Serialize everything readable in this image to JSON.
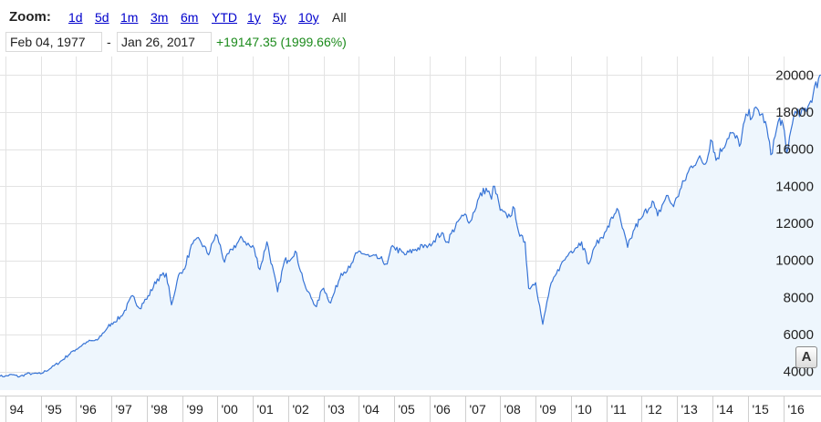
{
  "toolbar": {
    "zoom_label": "Zoom:",
    "ranges": [
      "1d",
      "5d",
      "1m",
      "3m",
      "6m",
      "YTD",
      "1y",
      "5y",
      "10y"
    ],
    "active_range": "All",
    "date_from": "Feb 04, 1977",
    "separator": "-",
    "date_to": "Jan 26, 2017",
    "change_text": "+19147.35 (1999.66%)",
    "change_color": "#1b8a1b"
  },
  "chart_data": {
    "type": "area",
    "x_axis": {
      "labels": [
        "94",
        "'95",
        "'96",
        "'97",
        "'98",
        "'99",
        "'00",
        "'01",
        "'02",
        "'03",
        "'04",
        "'05",
        "'06",
        "'07",
        "'08",
        "'09",
        "'10",
        "'11",
        "'12",
        "'13",
        "'14",
        "'15",
        "'16"
      ],
      "years": [
        1994,
        1995,
        1996,
        1997,
        1998,
        1999,
        2000,
        2001,
        2002,
        2003,
        2004,
        2005,
        2006,
        2007,
        2008,
        2009,
        2010,
        2011,
        2012,
        2013,
        2014,
        2015,
        2016
      ]
    },
    "y_axis": {
      "min": 3000,
      "max": 21000,
      "ticks": [
        4000,
        6000,
        8000,
        10000,
        12000,
        14000,
        16000,
        18000,
        20000
      ],
      "side": "right"
    },
    "grid": true,
    "line_color": "#3774d6",
    "fill_color": "#eef6fd",
    "series": [
      {
        "points": [
          [
            1993.85,
            3750
          ],
          [
            1994.0,
            3760
          ],
          [
            1994.2,
            3830
          ],
          [
            1994.4,
            3720
          ],
          [
            1994.6,
            3870
          ],
          [
            1994.8,
            3900
          ],
          [
            1995.0,
            3880
          ],
          [
            1995.3,
            4200
          ],
          [
            1995.6,
            4600
          ],
          [
            1995.9,
            5100
          ],
          [
            1996.0,
            5200
          ],
          [
            1996.3,
            5600
          ],
          [
            1996.6,
            5700
          ],
          [
            1996.9,
            6400
          ],
          [
            1997.0,
            6600
          ],
          [
            1997.3,
            7000
          ],
          [
            1997.6,
            8100
          ],
          [
            1997.8,
            7400
          ],
          [
            1997.95,
            7900
          ],
          [
            1998.0,
            7900
          ],
          [
            1998.3,
            9000
          ],
          [
            1998.55,
            9300
          ],
          [
            1998.7,
            7600
          ],
          [
            1998.9,
            9200
          ],
          [
            1999.0,
            9300
          ],
          [
            1999.3,
            10900
          ],
          [
            1999.5,
            11100
          ],
          [
            1999.75,
            10300
          ],
          [
            1999.95,
            11400
          ],
          [
            2000.0,
            11300
          ],
          [
            2000.2,
            9900
          ],
          [
            2000.4,
            10600
          ],
          [
            2000.7,
            11200
          ],
          [
            2000.95,
            10700
          ],
          [
            2001.0,
            10800
          ],
          [
            2001.2,
            9500
          ],
          [
            2001.4,
            11000
          ],
          [
            2001.7,
            8300
          ],
          [
            2001.9,
            10000
          ],
          [
            2002.0,
            10000
          ],
          [
            2002.2,
            10500
          ],
          [
            2002.5,
            8500
          ],
          [
            2002.8,
            7500
          ],
          [
            2002.95,
            8400
          ],
          [
            2003.0,
            8500
          ],
          [
            2003.2,
            7700
          ],
          [
            2003.5,
            9300
          ],
          [
            2003.75,
            9600
          ],
          [
            2003.95,
            10400
          ],
          [
            2004.0,
            10500
          ],
          [
            2004.3,
            10200
          ],
          [
            2004.6,
            10100
          ],
          [
            2004.8,
            9800
          ],
          [
            2004.95,
            10800
          ],
          [
            2005.0,
            10700
          ],
          [
            2005.3,
            10300
          ],
          [
            2005.6,
            10600
          ],
          [
            2005.9,
            10800
          ],
          [
            2006.0,
            10900
          ],
          [
            2006.35,
            11500
          ],
          [
            2006.5,
            11000
          ],
          [
            2006.8,
            12100
          ],
          [
            2006.95,
            12400
          ],
          [
            2007.0,
            12500
          ],
          [
            2007.15,
            12100
          ],
          [
            2007.4,
            13400
          ],
          [
            2007.6,
            13900
          ],
          [
            2007.75,
            13300
          ],
          [
            2007.8,
            14000
          ],
          [
            2007.95,
            13200
          ],
          [
            2008.0,
            12700
          ],
          [
            2008.2,
            12300
          ],
          [
            2008.4,
            12800
          ],
          [
            2008.55,
            11300
          ],
          [
            2008.7,
            11000
          ],
          [
            2008.8,
            8500
          ],
          [
            2008.92,
            8700
          ],
          [
            2009.0,
            8800
          ],
          [
            2009.15,
            7100
          ],
          [
            2009.2,
            6550
          ],
          [
            2009.4,
            8500
          ],
          [
            2009.7,
            9700
          ],
          [
            2009.95,
            10400
          ],
          [
            2010.0,
            10500
          ],
          [
            2010.3,
            11000
          ],
          [
            2010.5,
            9800
          ],
          [
            2010.7,
            10800
          ],
          [
            2010.95,
            11500
          ],
          [
            2011.0,
            11600
          ],
          [
            2011.3,
            12800
          ],
          [
            2011.6,
            10700
          ],
          [
            2011.8,
            11700
          ],
          [
            2011.95,
            12200
          ],
          [
            2012.0,
            12300
          ],
          [
            2012.3,
            13200
          ],
          [
            2012.45,
            12400
          ],
          [
            2012.7,
            13500
          ],
          [
            2012.9,
            12900
          ],
          [
            2013.0,
            13400
          ],
          [
            2013.4,
            15100
          ],
          [
            2013.6,
            15500
          ],
          [
            2013.8,
            15200
          ],
          [
            2013.95,
            16500
          ],
          [
            2014.0,
            16400
          ],
          [
            2014.1,
            15400
          ],
          [
            2014.5,
            16900
          ],
          [
            2014.8,
            16300
          ],
          [
            2014.95,
            17900
          ],
          [
            2015.0,
            17800
          ],
          [
            2015.3,
            18100
          ],
          [
            2015.5,
            17500
          ],
          [
            2015.65,
            15700
          ],
          [
            2015.9,
            17700
          ],
          [
            2016.0,
            17300
          ],
          [
            2016.1,
            15800
          ],
          [
            2016.3,
            17800
          ],
          [
            2016.5,
            17900
          ],
          [
            2016.7,
            18300
          ],
          [
            2016.85,
            19000
          ],
          [
            2017.0,
            19800
          ],
          [
            2017.07,
            20000
          ]
        ]
      }
    ]
  }
}
